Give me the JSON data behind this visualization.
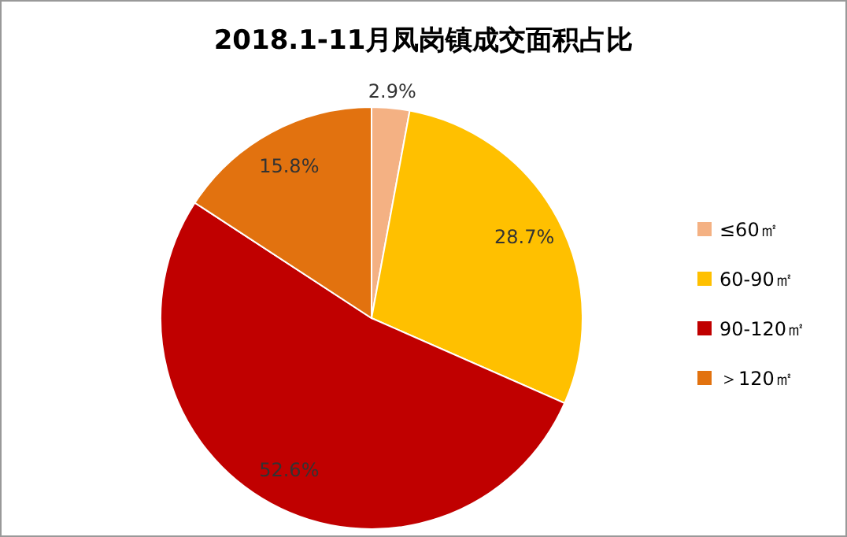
{
  "chart_data": {
    "type": "pie",
    "title": "2018.1-11月凤岗镇成交面积占比",
    "categories": [
      "≤60㎡",
      "60-90㎡",
      "90-120㎡",
      "＞120㎡"
    ],
    "values": [
      2.9,
      28.7,
      52.6,
      15.8
    ],
    "colors": [
      "#f4b183",
      "#ffc000",
      "#c00000",
      "#e2720f"
    ],
    "value_labels": [
      "2.9%",
      "28.7%",
      "52.6%",
      "15.8%"
    ],
    "legend": "right"
  }
}
